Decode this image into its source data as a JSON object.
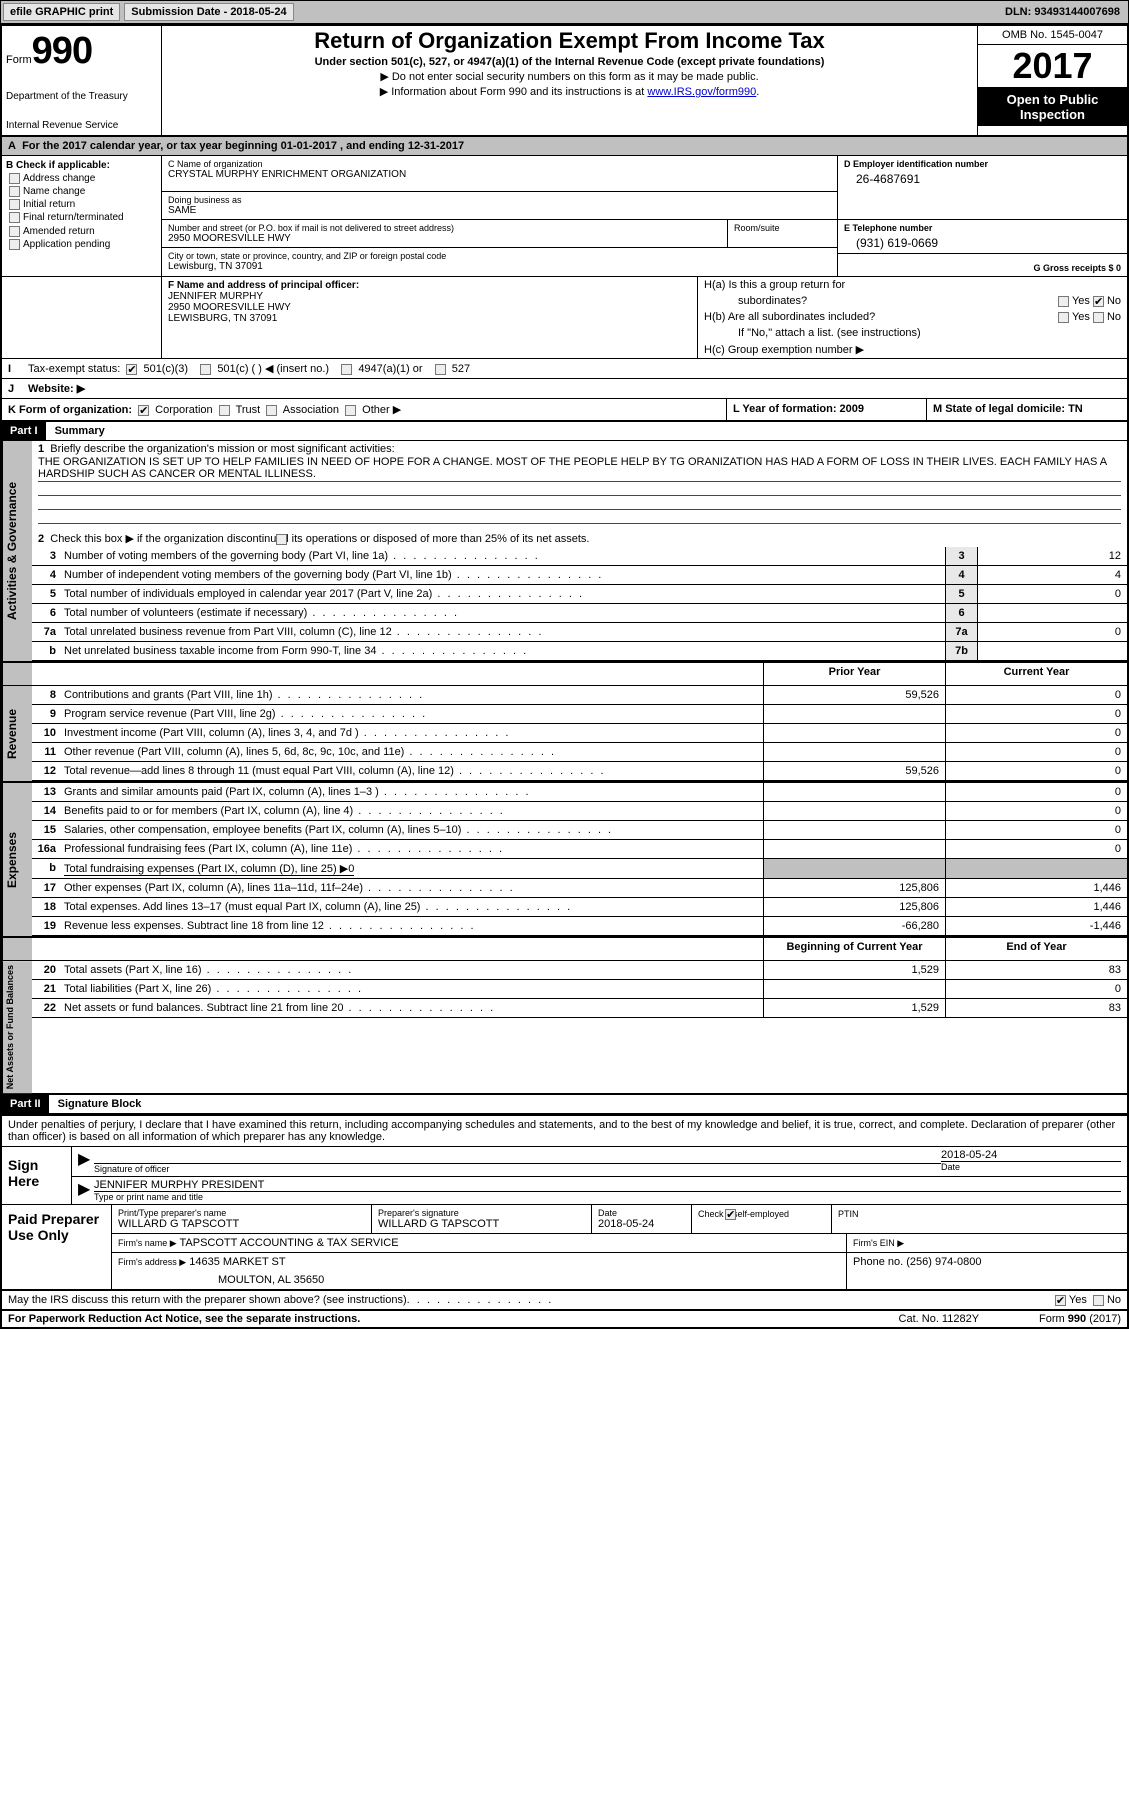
{
  "topbar": {
    "efile": "efile GRAPHIC print",
    "submission": "Submission Date - 2018-05-24",
    "dln": "DLN: 93493144007698"
  },
  "header": {
    "form_word": "Form",
    "form_num": "990",
    "dept1": "Department of the Treasury",
    "dept2": "Internal Revenue Service",
    "title": "Return of Organization Exempt From Income Tax",
    "sub": "Under section 501(c), 527, or 4947(a)(1) of the Internal Revenue Code (except private foundations)",
    "note1": "▶ Do not enter social security numbers on this form as it may be made public.",
    "note2": "▶ Information about Form 990 and its instructions is at ",
    "link": "www.IRS.gov/form990",
    "omb": "OMB No. 1545-0047",
    "year": "2017",
    "open1": "Open to Public",
    "open2": "Inspection"
  },
  "A": "For the 2017 calendar year, or tax year beginning 01-01-2017   , and ending 12-31-2017",
  "B": {
    "title": "B Check if applicable:",
    "items": [
      "Address change",
      "Name change",
      "Initial return",
      "Final return/terminated",
      "Amended return",
      "Application pending"
    ]
  },
  "C": {
    "name_lbl": "C Name of organization",
    "name": "CRYSTAL MURPHY ENRICHMENT ORGANIZATION",
    "dba_lbl": "Doing business as",
    "dba": "SAME",
    "street_lbl": "Number and street (or P.O. box if mail is not delivered to street address)",
    "street": "2950 MOORESVILLE HWY",
    "room_lbl": "Room/suite",
    "city_lbl": "City or town, state or province, country, and ZIP or foreign postal code",
    "city": "Lewisburg, TN  37091"
  },
  "D": {
    "lbl": "D Employer identification number",
    "val": "26-4687691"
  },
  "E": {
    "lbl": "E Telephone number",
    "val": "(931) 619-0669"
  },
  "G": {
    "lbl": "G Gross receipts $ 0"
  },
  "F": {
    "lbl": "F  Name and address of principal officer:",
    "name": "JENNIFER MURPHY",
    "street": "2950 MOORESVILLE HWY",
    "city": "LEWISBURG, TN  37091"
  },
  "H": {
    "a": "H(a)  Is this a group return for",
    "a2": "subordinates?",
    "b": "H(b)  Are all subordinates included?",
    "b_note": "If \"No,\" attach a list. (see instructions)",
    "c": "H(c)  Group exemption number ▶",
    "yes": "Yes",
    "no": "No"
  },
  "I": {
    "lbl": "Tax-exempt status:",
    "opts": [
      "501(c)(3)",
      "501(c) (  ) ◀ (insert no.)",
      "4947(a)(1) or",
      "527"
    ]
  },
  "J": "Website: ▶",
  "K": {
    "lbl": "K Form of organization:",
    "opts": [
      "Corporation",
      "Trust",
      "Association",
      "Other ▶"
    ]
  },
  "L": "L Year of formation: 2009",
  "M": "M State of legal domicile: TN",
  "part1": {
    "bar": "Part I",
    "title": "Summary",
    "l1": "Briefly describe the organization's mission or most significant activities:",
    "mission": "THE ORGANIZATION IS SET UP TO HELP FAMILIES IN NEED OF HOPE FOR A CHANGE. MOST OF THE PEOPLE HELP BY TG ORANIZATION HAS HAD A FORM OF LOSS IN THEIR LIVES. EACH FAMILY HAS A HARDSHIP SUCH AS CANCER OR MENTAL ILLINESS.",
    "l2": "Check this box ▶       if the organization discontinued its operations or disposed of more than 25% of its net assets.",
    "lines": [
      {
        "n": "3",
        "t": "Number of voting members of the governing body (Part VI, line 1a)",
        "box": "3",
        "v": "12"
      },
      {
        "n": "4",
        "t": "Number of independent voting members of the governing body (Part VI, line 1b)",
        "box": "4",
        "v": "4"
      },
      {
        "n": "5",
        "t": "Total number of individuals employed in calendar year 2017 (Part V, line 2a)",
        "box": "5",
        "v": "0"
      },
      {
        "n": "6",
        "t": "Total number of volunteers (estimate if necessary)",
        "box": "6",
        "v": ""
      },
      {
        "n": "7a",
        "t": "Total unrelated business revenue from Part VIII, column (C), line 12",
        "box": "7a",
        "v": "0"
      },
      {
        "n": "b",
        "t": "Net unrelated business taxable income from Form 990-T, line 34",
        "box": "7b",
        "v": ""
      }
    ],
    "hdr_prior": "Prior Year",
    "hdr_curr": "Current Year",
    "revenue": [
      {
        "n": "8",
        "t": "Contributions and grants (Part VIII, line 1h)",
        "p": "59,526",
        "c": "0"
      },
      {
        "n": "9",
        "t": "Program service revenue (Part VIII, line 2g)",
        "p": "",
        "c": "0"
      },
      {
        "n": "10",
        "t": "Investment income (Part VIII, column (A), lines 3, 4, and 7d )",
        "p": "",
        "c": "0"
      },
      {
        "n": "11",
        "t": "Other revenue (Part VIII, column (A), lines 5, 6d, 8c, 9c, 10c, and 11e)",
        "p": "",
        "c": "0"
      },
      {
        "n": "12",
        "t": "Total revenue—add lines 8 through 11 (must equal Part VIII, column (A), line 12)",
        "p": "59,526",
        "c": "0"
      }
    ],
    "expenses": [
      {
        "n": "13",
        "t": "Grants and similar amounts paid (Part IX, column (A), lines 1–3 )",
        "p": "",
        "c": "0"
      },
      {
        "n": "14",
        "t": "Benefits paid to or for members (Part IX, column (A), line 4)",
        "p": "",
        "c": "0"
      },
      {
        "n": "15",
        "t": "Salaries, other compensation, employee benefits (Part IX, column (A), lines 5–10)",
        "p": "",
        "c": "0"
      },
      {
        "n": "16a",
        "t": "Professional fundraising fees (Part IX, column (A), line 11e)",
        "p": "",
        "c": "0"
      }
    ],
    "l16b": "Total fundraising expenses (Part IX, column (D), line 25) ▶0",
    "expenses2": [
      {
        "n": "17",
        "t": "Other expenses (Part IX, column (A), lines 11a–11d, 11f–24e)",
        "p": "125,806",
        "c": "1,446"
      },
      {
        "n": "18",
        "t": "Total expenses. Add lines 13–17 (must equal Part IX, column (A), line 25)",
        "p": "125,806",
        "c": "1,446"
      },
      {
        "n": "19",
        "t": "Revenue less expenses. Subtract line 18 from line 12",
        "p": "-66,280",
        "c": "-1,446"
      }
    ],
    "hdr_beg": "Beginning of Current Year",
    "hdr_end": "End of Year",
    "net": [
      {
        "n": "20",
        "t": "Total assets (Part X, line 16)",
        "p": "1,529",
        "c": "83"
      },
      {
        "n": "21",
        "t": "Total liabilities (Part X, line 26)",
        "p": "",
        "c": "0"
      },
      {
        "n": "22",
        "t": "Net assets or fund balances. Subtract line 21 from line 20",
        "p": "1,529",
        "c": "83"
      }
    ],
    "vlabels": {
      "gov": "Activities & Governance",
      "rev": "Revenue",
      "exp": "Expenses",
      "net": "Net Assets or Fund Balances"
    }
  },
  "part2": {
    "bar": "Part II",
    "title": "Signature Block",
    "decl": "Under penalties of perjury, I declare that I have examined this return, including accompanying schedules and statements, and to the best of my knowledge and belief, it is true, correct, and complete. Declaration of preparer (other than officer) is based on all information of which preparer has any knowledge.",
    "sign_here": "Sign Here",
    "sig_officer": "Signature of officer",
    "sig_date": "2018-05-24",
    "date_lbl": "Date",
    "officer_name": "JENNIFER MURPHY PRESIDENT",
    "type_name": "Type or print name and title",
    "paid": "Paid Preparer Use Only",
    "prep_name_lbl": "Print/Type preparer's name",
    "prep_name": "WILLARD G TAPSCOTT",
    "prep_sig_lbl": "Preparer's signature",
    "prep_sig": "WILLARD G TAPSCOTT",
    "prep_date_lbl": "Date",
    "prep_date": "2018-05-24",
    "check_self": "Check       if self-employed",
    "ptin": "PTIN",
    "firm_name_lbl": "Firm's name      ▶",
    "firm_name": "TAPSCOTT ACCOUNTING & TAX SERVICE",
    "firm_ein": "Firm's EIN ▶",
    "firm_addr_lbl": "Firm's address ▶",
    "firm_addr": "14635 MARKET ST",
    "firm_city": "MOULTON, AL  35650",
    "phone_lbl": "Phone no. (256) 974-0800",
    "discuss": "May the IRS discuss this return with the preparer shown above? (see instructions)",
    "yes": "Yes",
    "no": "No"
  },
  "footer": {
    "pra": "For Paperwork Reduction Act Notice, see the separate instructions.",
    "cat": "Cat. No. 11282Y",
    "form": "Form 990 (2017)"
  }
}
